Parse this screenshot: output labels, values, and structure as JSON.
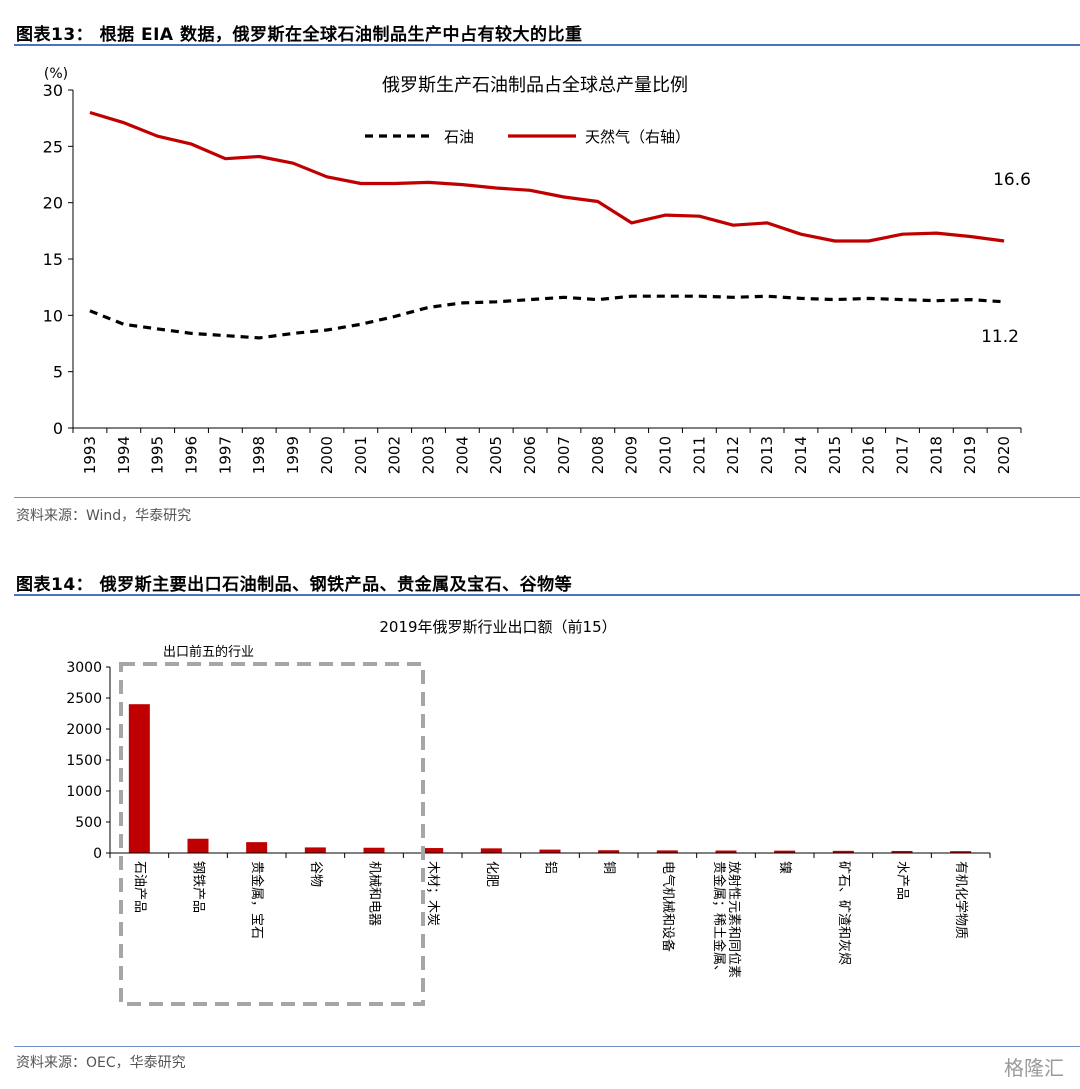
{
  "fig13": {
    "heading": "图表13：  根据 EIA 数据，俄罗斯在全球石油制品生产中占有较大的比重",
    "source": "资料来源：Wind，华泰研究"
  },
  "fig14": {
    "heading": "图表14：  俄罗斯主要出口石油制品、钢铁产品、贵金属及宝石、谷物等",
    "source": "资料来源：OEC，华泰研究"
  },
  "watermark": "格隆汇",
  "chart_data": [
    {
      "type": "line",
      "title": "俄罗斯生产石油制品占全球总产量比例",
      "ylabel": "(%)",
      "ylim": [
        0,
        30
      ],
      "yticks": [
        0,
        5,
        10,
        15,
        20,
        25,
        30
      ],
      "x": [
        "1993",
        "1994",
        "1995",
        "1996",
        "1997",
        "1998",
        "1999",
        "2000",
        "2001",
        "2002",
        "2003",
        "2004",
        "2005",
        "2006",
        "2007",
        "2008",
        "2009",
        "2010",
        "2011",
        "2012",
        "2013",
        "2014",
        "2015",
        "2016",
        "2017",
        "2018",
        "2019",
        "2020"
      ],
      "legend_position": "top-center",
      "series": [
        {
          "name": "石油",
          "style": "dashed",
          "color": "#000000",
          "values": [
            10.4,
            9.2,
            8.8,
            8.4,
            8.2,
            8.0,
            8.4,
            8.7,
            9.2,
            9.9,
            10.7,
            11.1,
            11.2,
            11.4,
            11.6,
            11.4,
            11.7,
            11.7,
            11.7,
            11.6,
            11.7,
            11.5,
            11.4,
            11.5,
            11.4,
            11.3,
            11.4,
            11.2
          ]
        },
        {
          "name": "天然气（右轴）",
          "style": "solid",
          "color": "#c00000",
          "values": [
            28.0,
            27.1,
            25.9,
            25.2,
            23.9,
            24.1,
            23.5,
            22.3,
            21.7,
            21.7,
            21.8,
            21.6,
            21.3,
            21.1,
            20.5,
            20.1,
            18.2,
            18.9,
            18.8,
            18.0,
            18.2,
            17.2,
            16.6,
            16.6,
            17.2,
            17.3,
            17.0,
            16.6
          ]
        }
      ],
      "annotations": [
        "16.6",
        "11.2"
      ]
    },
    {
      "type": "bar",
      "title": "2019年俄罗斯行业出口额（前15）",
      "ylim": [
        0,
        3000
      ],
      "yticks": [
        0,
        500,
        1000,
        1500,
        2000,
        2500,
        3000
      ],
      "bar_color": "#c00000",
      "categories": [
        "石油产品",
        "钢铁产品",
        "贵金属，宝石",
        "谷物",
        "机械和电器",
        "木材；木炭",
        "化肥",
        "铝",
        "铜",
        "电气机械和设备",
        "贵金属；稀土金属、放射性元素和同位素",
        "镍",
        "矿石、矿渣和灰烬",
        "水产品",
        "有机化学物质"
      ],
      "values": [
        2400,
        230,
        175,
        90,
        85,
        80,
        75,
        55,
        45,
        42,
        40,
        38,
        35,
        33,
        30
      ],
      "annotation": "出口前五的行业"
    }
  ]
}
